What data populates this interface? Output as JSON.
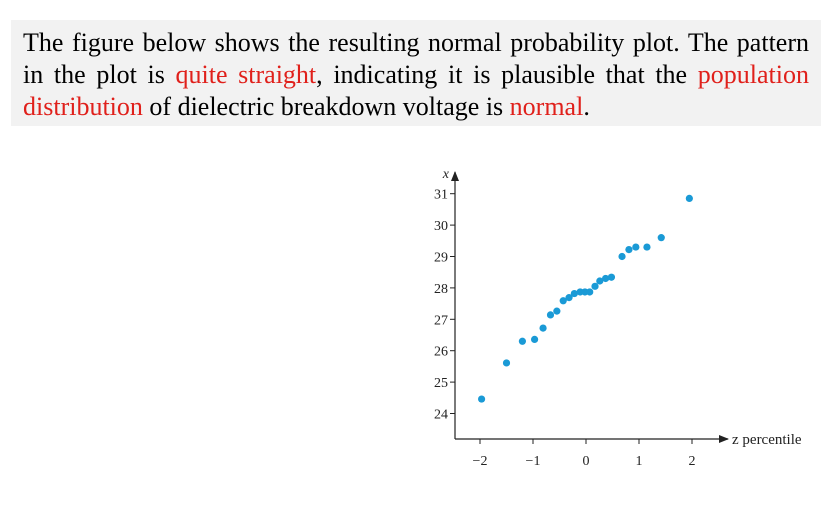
{
  "paragraph": {
    "part1": "The figure below shows the resulting normal probability plot. The pattern in the plot is ",
    "highlight1": "quite straight",
    "part2": ", indicating it is plausible that the ",
    "highlight2": "population distribution",
    "part3": " of dielectric breakdown voltage is ",
    "highlight3": "normal",
    "part4": ".",
    "highlight_color": "#e0201b"
  },
  "chart_data": {
    "type": "scatter",
    "title": "",
    "xlabel": "z percentile",
    "ylabel": "x",
    "xlim": [
      -2.3,
      2.45
    ],
    "ylim": [
      23.45,
      31.7
    ],
    "x_ticks": [
      -2,
      -1,
      0,
      1,
      2
    ],
    "x_tick_labels": [
      "−2",
      "−1",
      "0",
      "1",
      "2"
    ],
    "y_ticks": [
      24,
      25,
      26,
      27,
      28,
      29,
      30,
      31
    ],
    "y_tick_labels": [
      "24",
      "25",
      "26",
      "27",
      "28",
      "29",
      "30",
      "31"
    ],
    "grid": false,
    "marker_color": "#1a9ad6",
    "series": [
      {
        "name": "",
        "points": [
          [
            -1.97,
            24.46
          ],
          [
            -1.5,
            25.61
          ],
          [
            -1.2,
            26.3
          ],
          [
            -0.97,
            26.36
          ],
          [
            -0.81,
            26.72
          ],
          [
            -0.67,
            27.14
          ],
          [
            -0.55,
            27.26
          ],
          [
            -0.43,
            27.59
          ],
          [
            -0.32,
            27.69
          ],
          [
            -0.22,
            27.82
          ],
          [
            -0.11,
            27.87
          ],
          [
            -0.02,
            27.87
          ],
          [
            0.07,
            27.87
          ],
          [
            0.17,
            28.05
          ],
          [
            0.26,
            28.22
          ],
          [
            0.37,
            28.3
          ],
          [
            0.48,
            28.34
          ],
          [
            0.68,
            29.0
          ],
          [
            0.81,
            29.22
          ],
          [
            0.94,
            29.3
          ],
          [
            1.15,
            29.3
          ],
          [
            1.42,
            29.6
          ],
          [
            1.95,
            30.85
          ]
        ]
      }
    ]
  }
}
